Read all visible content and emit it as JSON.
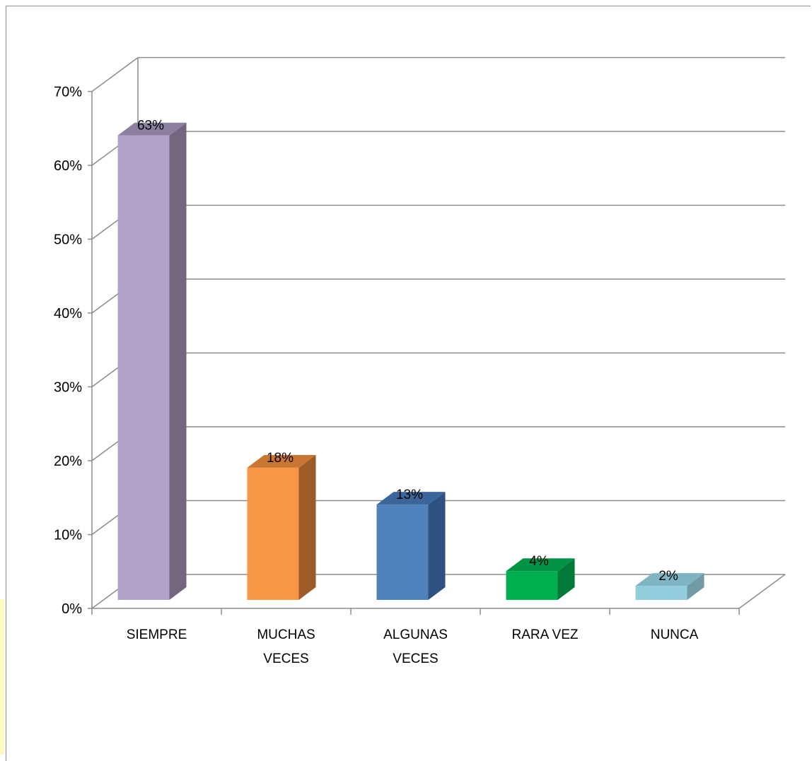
{
  "chart_data": {
    "type": "bar",
    "style": "3d-column",
    "categories": [
      [
        "SIEMPRE"
      ],
      [
        "MUCHAS",
        "VECES"
      ],
      [
        "ALGUNAS",
        "VECES"
      ],
      [
        "RARA VEZ"
      ],
      [
        "NUNCA"
      ]
    ],
    "values": [
      63,
      18,
      13,
      4,
      2
    ],
    "value_labels": [
      "63%",
      "18%",
      "13%",
      "4%",
      "2%"
    ],
    "colors": [
      {
        "front": "#b3a2c7",
        "side": "#72677f",
        "top": "#8d7fa0"
      },
      {
        "front": "#f79646",
        "side": "#9c5b27",
        "top": "#c97633"
      },
      {
        "front": "#4f81bd",
        "side": "#2f5180",
        "top": "#3b669b"
      },
      {
        "front": "#00b050",
        "side": "#007a37",
        "top": "#009444"
      },
      {
        "front": "#93cddd",
        "side": "#6f9aa6",
        "top": "#7fb4c2"
      }
    ],
    "y_ticks": [
      "0%",
      "10%",
      "20%",
      "30%",
      "40%",
      "50%",
      "60%",
      "70%"
    ],
    "ylim": [
      0,
      70
    ],
    "grid": true,
    "title": "",
    "xlabel": "",
    "ylabel": ""
  }
}
